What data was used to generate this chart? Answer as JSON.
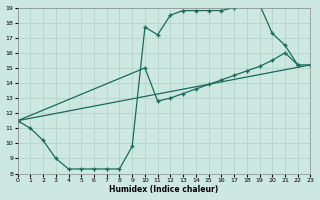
{
  "xlabel": "Humidex (Indice chaleur)",
  "xlim": [
    0,
    23
  ],
  "ylim": [
    8,
    19
  ],
  "xticks": [
    0,
    1,
    2,
    3,
    4,
    5,
    6,
    7,
    8,
    9,
    10,
    11,
    12,
    13,
    14,
    15,
    16,
    17,
    18,
    19,
    20,
    21,
    22,
    23
  ],
  "yticks": [
    8,
    9,
    10,
    11,
    12,
    13,
    14,
    15,
    16,
    17,
    18,
    19
  ],
  "bg_color": "#cce8e0",
  "line_color": "#1a6b5a",
  "grid_color": "#b0d0c8",
  "curve1_x": [
    0,
    1,
    2,
    3,
    4,
    5,
    6,
    7,
    8,
    9,
    10,
    11,
    12,
    13,
    14,
    15,
    16,
    17,
    18,
    19,
    20,
    21,
    22
  ],
  "curve1_y": [
    11.5,
    11.0,
    10.2,
    9.0,
    8.3,
    8.3,
    8.3,
    8.3,
    8.3,
    9.8,
    17.7,
    17.2,
    18.5,
    18.8,
    18.8,
    18.8,
    18.8,
    19.0,
    19.2,
    19.2,
    17.3,
    16.5,
    15.2
  ],
  "curve2_x": [
    0,
    10,
    11,
    12,
    13,
    14,
    15,
    16,
    17,
    18,
    19,
    20,
    21,
    22,
    23
  ],
  "curve2_y": [
    11.5,
    15.0,
    12.8,
    13.0,
    13.3,
    13.6,
    13.9,
    14.2,
    14.5,
    14.8,
    15.1,
    15.5,
    16.0,
    15.2,
    15.2
  ],
  "curve3_x": [
    0,
    23
  ],
  "curve3_y": [
    11.5,
    15.2
  ]
}
